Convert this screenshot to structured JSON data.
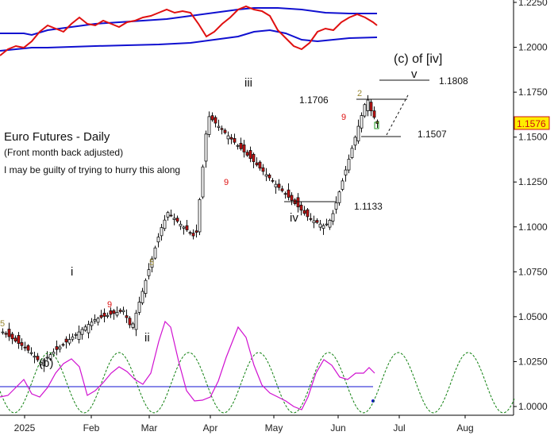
{
  "chart_data": {
    "type": "candlestick",
    "title": "Euro Futures - Daily",
    "subtitle": "(Front month back adjusted)",
    "note": "I may be guilty of trying to hurry this along",
    "y_ticks": [
      "1.2250",
      "1.2000",
      "1.1750",
      "1.1500",
      "1.1250",
      "1.1000",
      "1.0750",
      "1.0500",
      "1.0250",
      "1.0000"
    ],
    "ylim": [
      1.0,
      1.225
    ],
    "x_ticks": [
      "2025",
      "Feb",
      "Mar",
      "Apr",
      "May",
      "Jun",
      "Jul",
      "Aug"
    ],
    "last_price": "1.1576",
    "last_price_value": 1.1576,
    "price_color_up": "#ffffff",
    "price_color_down": "#cc1111",
    "closes": [
      1.0415,
      1.0402,
      1.0389,
      1.0377,
      1.0364,
      1.0351,
      1.0339,
      1.0326,
      1.0313,
      1.03,
      1.028,
      1.026,
      1.0246,
      1.026,
      1.0274,
      1.0289,
      1.0303,
      1.0317,
      1.0331,
      1.0345,
      1.0359,
      1.0373,
      1.0387,
      1.0401,
      1.0415,
      1.0429,
      1.0443,
      1.0457,
      1.047,
      1.0484,
      1.0491,
      1.0496,
      1.0502,
      1.0507,
      1.0513,
      1.0518,
      1.0524,
      1.0529,
      1.0535,
      1.0495,
      1.0455,
      1.046,
      1.052,
      1.0581,
      1.0641,
      1.0702,
      1.0762,
      1.0822,
      1.0883,
      1.0943,
      1.0996,
      1.1038,
      1.108,
      1.1064,
      1.1048,
      1.1031,
      1.1015,
      1.0999,
      1.0983,
      1.0966,
      1.095,
      1.097,
      1.1152,
      1.1334,
      1.1517,
      1.1614,
      1.1596,
      1.1578,
      1.156,
      1.1542,
      1.1524,
      1.1507,
      1.1489,
      1.1471,
      1.1453,
      1.1435,
      1.1417,
      1.1399,
      1.1381,
      1.1363,
      1.1345,
      1.1327,
      1.1309,
      1.1291,
      1.1273,
      1.1255,
      1.1237,
      1.1219,
      1.1201,
      1.1183,
      1.1165,
      1.1147,
      1.1129,
      1.1111,
      1.1093,
      1.1075,
      1.1057,
      1.1043,
      1.1034,
      1.1025,
      1.1016,
      1.1007,
      1.1016,
      1.1037,
      1.1074,
      1.1134,
      1.1195,
      1.1256,
      1.1317,
      1.1377,
      1.1438,
      1.1499,
      1.156,
      1.162,
      1.1681,
      1.1706,
      1.1646,
      1.161,
      1.1576
    ],
    "panels": {
      "top_band": {
        "lines": [
          "upper-band",
          "lower-band",
          "price-line"
        ],
        "colors": [
          "#1010d0",
          "#1010d0",
          "#e01010"
        ]
      },
      "bottom_cycle": {
        "lines": [
          "momentum",
          "cycle-projection",
          "zero-line"
        ],
        "colors": [
          "#d010d0",
          "#108010",
          "#1010d0"
        ]
      }
    },
    "levels": [
      {
        "label": "1.1808",
        "value": 1.1808
      },
      {
        "label": "1.1706",
        "value": 1.1706
      },
      {
        "label": "1.1507",
        "value": 1.1507
      },
      {
        "label": "1.1133",
        "value": 1.1133
      }
    ],
    "wave_labels": [
      "(c) of [iv]",
      "v",
      "iii",
      "iv",
      "i",
      "ii",
      "(b)"
    ],
    "count_marks": [
      "5",
      "9",
      "5",
      "9",
      "9",
      "2",
      "5"
    ],
    "count_colors": {
      "red": "#dd1111",
      "gold": "#998833",
      "green": "#229922"
    }
  }
}
